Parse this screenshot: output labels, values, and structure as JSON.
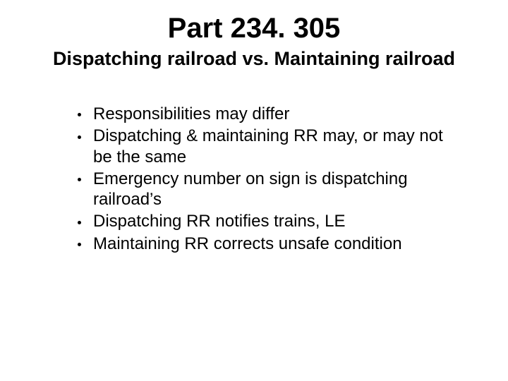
{
  "slide": {
    "title": "Part 234. 305",
    "title_fontsize": 40,
    "subtitle": "Dispatching railroad vs. Maintaining railroad",
    "subtitle_fontsize": 27,
    "bullet_fontsize": 24,
    "bullets": [
      "Responsibilities may differ",
      "Dispatching & maintaining RR may, or may not be the same",
      "Emergency number on sign is dispatching railroad’s",
      "Dispatching RR notifies trains, LE",
      "Maintaining RR corrects unsafe condition"
    ],
    "background_color": "#ffffff",
    "text_color": "#000000"
  }
}
